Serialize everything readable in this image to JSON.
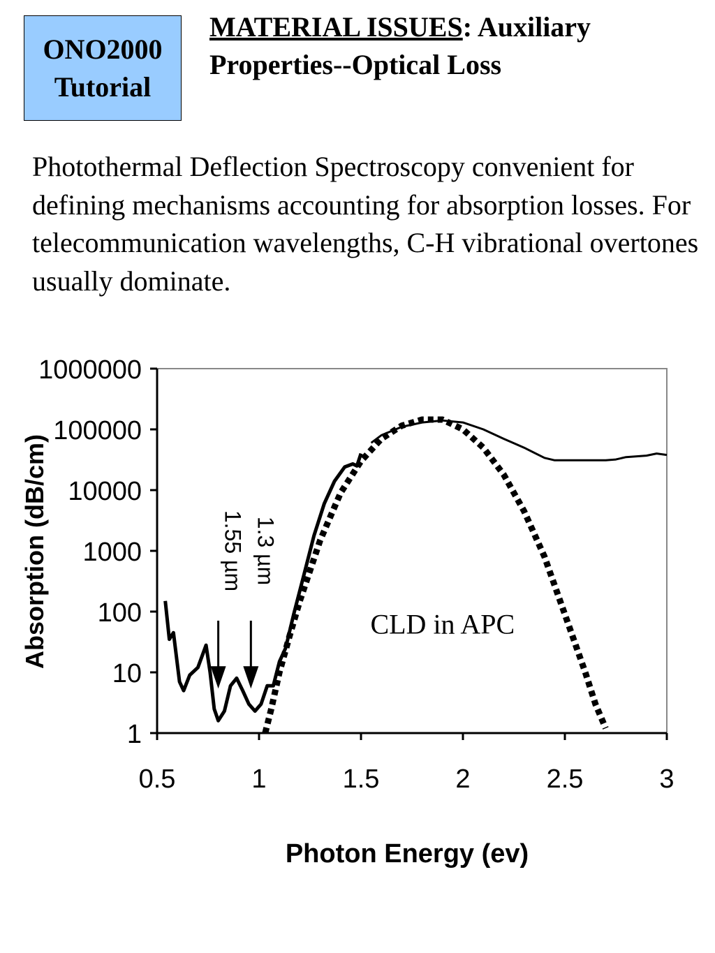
{
  "badge": {
    "line1": "ONO2000",
    "line2": "Tutorial"
  },
  "header": {
    "title_underlined": "MATERIAL ISSUES",
    "title_rest": ":  Auxiliary",
    "title_line2": "Properties--Optical Loss"
  },
  "paragraph": "Photothermal Deflection Spectroscopy convenient for defining mechanisms accounting for absorption losses.  For telecommunication wavelengths, C-H vibrational overtones usually dominate.",
  "chart_data": {
    "type": "line",
    "xlabel": "Photon Energy (ev)",
    "ylabel": "Absorption (dB/cm)",
    "xlim": [
      0.5,
      3
    ],
    "ylim": [
      1,
      1000000
    ],
    "y_scale": "log",
    "x_ticks": [
      "0.5",
      "1",
      "1.5",
      "2",
      "2.5",
      "3"
    ],
    "y_ticks": [
      "1",
      "10",
      "100",
      "1000",
      "10000",
      "100000",
      "1000000"
    ],
    "grid": false,
    "annotations": [
      {
        "text": "CLD in APC",
        "x": 1.9,
        "y": 60
      },
      {
        "text": "1.55 µm",
        "x": 0.8,
        "y": 1000,
        "arrow_to": [
          0.8,
          6
        ]
      },
      {
        "text": "1.3 µm",
        "x": 0.96,
        "y": 1000,
        "arrow_to": [
          0.96,
          6
        ]
      }
    ],
    "series": [
      {
        "style": "solid-thick",
        "x": [
          0.54,
          0.56,
          0.58,
          0.61,
          0.63,
          0.66,
          0.7,
          0.74,
          0.76,
          0.78,
          0.8,
          0.83,
          0.86,
          0.89,
          0.92,
          0.95,
          0.98,
          1.01,
          1.04,
          1.07,
          1.1,
          1.13,
          1.17,
          1.22,
          1.27,
          1.32,
          1.37,
          1.42,
          1.46,
          1.48,
          1.5
        ],
        "y": [
          150,
          35,
          45,
          7,
          5,
          9,
          12,
          28,
          10,
          2.5,
          1.6,
          2.3,
          6,
          8,
          5,
          3,
          2.3,
          3,
          6,
          6,
          15,
          25,
          90,
          400,
          1800,
          6000,
          14000,
          24000,
          27000,
          25000,
          40000
        ]
      },
      {
        "style": "solid-thin",
        "x": [
          1.55,
          1.6,
          1.7,
          1.8,
          1.9,
          2.0,
          2.1,
          2.2,
          2.3,
          2.4,
          2.45,
          2.5,
          2.6,
          2.7,
          2.75,
          2.8,
          2.9,
          2.95,
          3.0
        ],
        "y": [
          60000,
          80000,
          110000,
          130000,
          140000,
          130000,
          100000,
          70000,
          50000,
          34000,
          31000,
          31000,
          31000,
          31000,
          32000,
          35000,
          37000,
          40000,
          38000
        ]
      },
      {
        "style": "dotted-thick",
        "x": [
          1.03,
          1.06,
          1.1,
          1.15,
          1.2,
          1.3,
          1.4,
          1.5,
          1.6,
          1.7,
          1.8,
          1.9,
          2.0,
          2.1,
          2.2,
          2.3,
          2.4,
          2.5,
          2.6,
          2.65,
          2.7
        ],
        "y": [
          1,
          2.5,
          10,
          40,
          150,
          1500,
          9000,
          30000,
          70000,
          115000,
          145000,
          145000,
          100000,
          50000,
          18000,
          4500,
          800,
          90,
          10,
          3,
          1.2
        ]
      }
    ]
  }
}
